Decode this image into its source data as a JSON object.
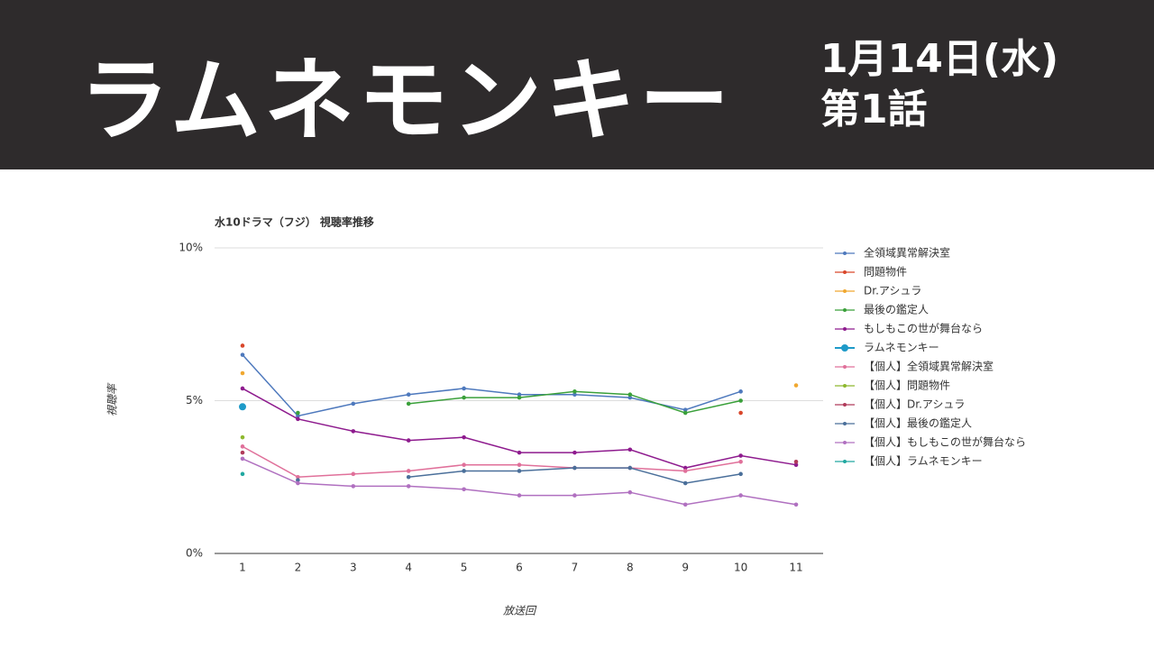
{
  "header": {
    "title": "ラムネモンキー",
    "date": "1月14日(水)",
    "episode": "第1話"
  },
  "chart_data": {
    "type": "line",
    "title": "水10ドラマ（フジ） 視聴率推移",
    "y_label": "視聴率",
    "x_label": "放送回",
    "categories": [
      "1",
      "2",
      "3",
      "4",
      "5",
      "6",
      "7",
      "8",
      "9",
      "10",
      "11"
    ],
    "ylim": [
      0,
      10
    ],
    "yticks": [
      {
        "value": 0,
        "label": "0%"
      },
      {
        "value": 5,
        "label": "5%"
      },
      {
        "value": 10,
        "label": "10%"
      }
    ],
    "grid": true,
    "series": [
      {
        "name": "全領域異常解決室",
        "color": "#4e79bd",
        "values": [
          6.5,
          4.5,
          4.9,
          5.2,
          5.4,
          5.2,
          5.2,
          5.1,
          4.7,
          5.3,
          null
        ]
      },
      {
        "name": "問題物件",
        "color": "#d9472b",
        "values": [
          6.8,
          null,
          null,
          null,
          null,
          null,
          null,
          null,
          null,
          4.6,
          null
        ]
      },
      {
        "name": "Dr.アシュラ",
        "color": "#f0a830",
        "values": [
          5.9,
          null,
          null,
          null,
          null,
          null,
          null,
          null,
          null,
          null,
          5.5
        ]
      },
      {
        "name": "最後の鑑定人",
        "color": "#3aa03a",
        "values": [
          null,
          4.6,
          null,
          4.9,
          5.1,
          5.1,
          5.3,
          5.2,
          4.6,
          5.0,
          null
        ]
      },
      {
        "name": "もしもこの世が舞台なら",
        "color": "#8e1b8e",
        "values": [
          5.4,
          4.4,
          4.0,
          3.7,
          3.8,
          3.3,
          3.3,
          3.4,
          2.8,
          3.2,
          2.9
        ]
      },
      {
        "name": "ラムネモンキー",
        "color": "#1e9ac8",
        "values": [
          4.8,
          null,
          null,
          null,
          null,
          null,
          null,
          null,
          null,
          null,
          null
        ]
      },
      {
        "name": "【個人】全領域異常解決室",
        "color": "#e0709a",
        "values": [
          3.5,
          2.5,
          2.6,
          2.7,
          2.9,
          2.9,
          2.8,
          2.8,
          2.7,
          3.0,
          null
        ]
      },
      {
        "name": "【個人】問題物件",
        "color": "#8db82e",
        "values": [
          3.8,
          null,
          null,
          null,
          null,
          null,
          null,
          null,
          null,
          null,
          null
        ]
      },
      {
        "name": "【個人】Dr.アシュラ",
        "color": "#b03a5a",
        "values": [
          3.3,
          null,
          null,
          null,
          null,
          null,
          null,
          null,
          null,
          null,
          3.0
        ]
      },
      {
        "name": "【個人】最後の鑑定人",
        "color": "#4a6f9a",
        "values": [
          null,
          2.4,
          null,
          2.5,
          2.7,
          2.7,
          2.8,
          2.8,
          2.3,
          2.6,
          null
        ]
      },
      {
        "name": "【個人】もしもこの世が舞台なら",
        "color": "#b070c0",
        "values": [
          3.1,
          2.3,
          2.2,
          2.2,
          2.1,
          1.9,
          1.9,
          2.0,
          1.6,
          1.9,
          1.6
        ]
      },
      {
        "name": "【個人】ラムネモンキー",
        "color": "#20a8a0",
        "values": [
          2.6,
          null,
          null,
          null,
          null,
          null,
          null,
          null,
          null,
          null,
          null
        ]
      }
    ]
  }
}
